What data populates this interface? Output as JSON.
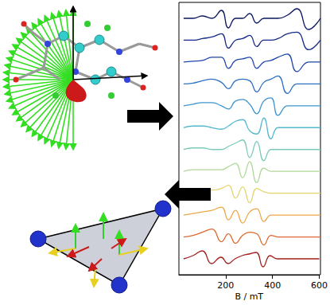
{
  "chart_data": {
    "type": "line",
    "x_label": "B / mT",
    "tick_labels": "x",
    "grid": false,
    "xlim": [
      0,
      600
    ],
    "xticks": [
      200,
      400,
      600
    ],
    "x": [
      20,
      60,
      100,
      140,
      180,
      210,
      240,
      270,
      300,
      330,
      360,
      390,
      420,
      460,
      500,
      550,
      600
    ],
    "series": [
      {
        "color": "#0b1660",
        "values": [
          0,
          0,
          0.15,
          0,
          0.5,
          -0.6,
          0,
          0,
          0.3,
          -0.3,
          0,
          0,
          0,
          0.2,
          0.6,
          -0.7,
          0
        ]
      },
      {
        "color": "#15298a",
        "values": [
          0,
          0,
          0.1,
          0.2,
          0.4,
          -0.5,
          0,
          0.1,
          0.3,
          -0.4,
          0,
          0,
          0.1,
          0.4,
          0.5,
          -0.6,
          0
        ]
      },
      {
        "color": "#1f46ad",
        "values": [
          0,
          0.05,
          0.1,
          0.3,
          0.3,
          -0.4,
          0.1,
          0.2,
          0.3,
          -0.4,
          0,
          0.1,
          0.3,
          0.5,
          -0.6,
          0,
          0
        ]
      },
      {
        "color": "#2e6fc6",
        "values": [
          0,
          0.05,
          0.2,
          0.3,
          0.1,
          -0.3,
          0.2,
          0.3,
          0.2,
          -0.5,
          0.1,
          0.3,
          0.5,
          -0.6,
          0,
          0,
          0
        ]
      },
      {
        "color": "#3f95d0",
        "values": [
          0,
          0.1,
          0.2,
          0.2,
          0,
          -0.2,
          0.3,
          0.4,
          0.1,
          -0.5,
          0.3,
          0.5,
          -0.6,
          0,
          0,
          0,
          0
        ]
      },
      {
        "color": "#55b7cf",
        "values": [
          0,
          0.1,
          0.1,
          0,
          -0.1,
          0.1,
          0.4,
          0.5,
          -0.2,
          -0.4,
          0.6,
          -0.7,
          0,
          0,
          0,
          0,
          0
        ]
      },
      {
        "color": "#7ccbbb",
        "values": [
          0,
          0.1,
          0.1,
          0,
          0,
          0.2,
          0.4,
          0.6,
          -0.5,
          0.5,
          -0.7,
          0,
          0,
          0,
          0,
          0,
          0
        ]
      },
      {
        "color": "#b0d898",
        "values": [
          0,
          0.1,
          0.1,
          0.1,
          0.1,
          0.3,
          0.5,
          -0.4,
          0.6,
          -0.7,
          0.2,
          0,
          0,
          0,
          0,
          0,
          0
        ]
      },
      {
        "color": "#e2d468",
        "values": [
          0,
          0.1,
          0.2,
          0.2,
          0.3,
          0.5,
          -0.3,
          0.4,
          -0.6,
          0.3,
          0.1,
          0,
          0,
          0,
          0,
          0,
          0
        ]
      },
      {
        "color": "#eba748",
        "values": [
          0,
          0.1,
          0.2,
          0.3,
          0.5,
          -0.3,
          0.3,
          -0.5,
          0.2,
          0.4,
          -0.4,
          0,
          0,
          0,
          0,
          0,
          0
        ]
      },
      {
        "color": "#db6a30",
        "values": [
          0,
          0.1,
          0.3,
          0.5,
          -0.3,
          0.2,
          -0.4,
          0.1,
          0.3,
          0.2,
          -0.5,
          0.1,
          0,
          0,
          0,
          0,
          0
        ]
      },
      {
        "color": "#a3201e",
        "values": [
          0,
          0.2,
          0.5,
          -0.3,
          0.1,
          -0.3,
          0,
          0.2,
          0.3,
          0.4,
          -0.5,
          0.2,
          0,
          0,
          0,
          0,
          0
        ]
      }
    ]
  }
}
